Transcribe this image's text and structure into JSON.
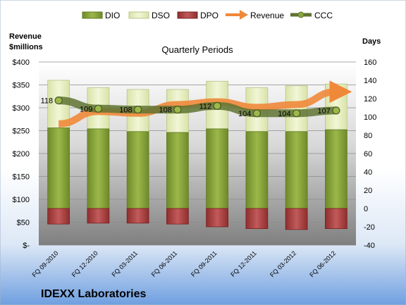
{
  "chart_data": {
    "type": "bar",
    "title": "Quarterly Periods",
    "company": "IDEXX Laboratories",
    "left_axis_label": [
      "Revenue",
      "$millions"
    ],
    "right_axis_label": "Days",
    "categories": [
      "FQ 09-2010",
      "FQ 12-2010",
      "FQ 03-2011",
      "FQ 06-2011",
      "FQ 09-2011",
      "FQ 12-2011",
      "FQ 03-2012",
      "FQ 06-2012"
    ],
    "left_axis": {
      "min": 0,
      "max": 400,
      "step": 50,
      "tick_labels": [
        "$-",
        "$50",
        "$100",
        "$150",
        "$200",
        "$250",
        "$300",
        "$350",
        "$400"
      ]
    },
    "right_axis": {
      "min": -40,
      "max": 160,
      "step": 20,
      "tick_labels": [
        "-40",
        "-20",
        "0",
        "20",
        "40",
        "60",
        "80",
        "100",
        "120",
        "140",
        "160"
      ]
    },
    "legend": [
      "DIO",
      "DSO",
      "DPO",
      "Revenue",
      "CCC"
    ],
    "legend_position": "top",
    "series": [
      {
        "name": "DIO",
        "axis": "right",
        "values": [
          88,
          87,
          84,
          83,
          87,
          84,
          84,
          86
        ],
        "color": "#8aa63c"
      },
      {
        "name": "DSO",
        "axis": "right",
        "values": [
          52,
          45,
          46,
          47,
          52,
          48,
          50,
          50
        ],
        "color": "#e6eec0"
      },
      {
        "name": "DPO",
        "axis": "right",
        "values": [
          -17,
          -16,
          -16,
          -17,
          -20,
          -22,
          -23,
          -22
        ],
        "color": "#b54a4a"
      },
      {
        "name": "Revenue",
        "axis": "left",
        "values": [
          265,
          292,
          288,
          307,
          313,
          301,
          307,
          335
        ],
        "color": "#f0883a"
      },
      {
        "name": "CCC",
        "axis": "right",
        "values": [
          118,
          109,
          108,
          108,
          112,
          104,
          104,
          107
        ],
        "color": "#5f7332"
      }
    ],
    "ccc_labels": [
      "118",
      "109",
      "108",
      "108",
      "112",
      "104",
      "104",
      "107"
    ],
    "grid": true
  }
}
